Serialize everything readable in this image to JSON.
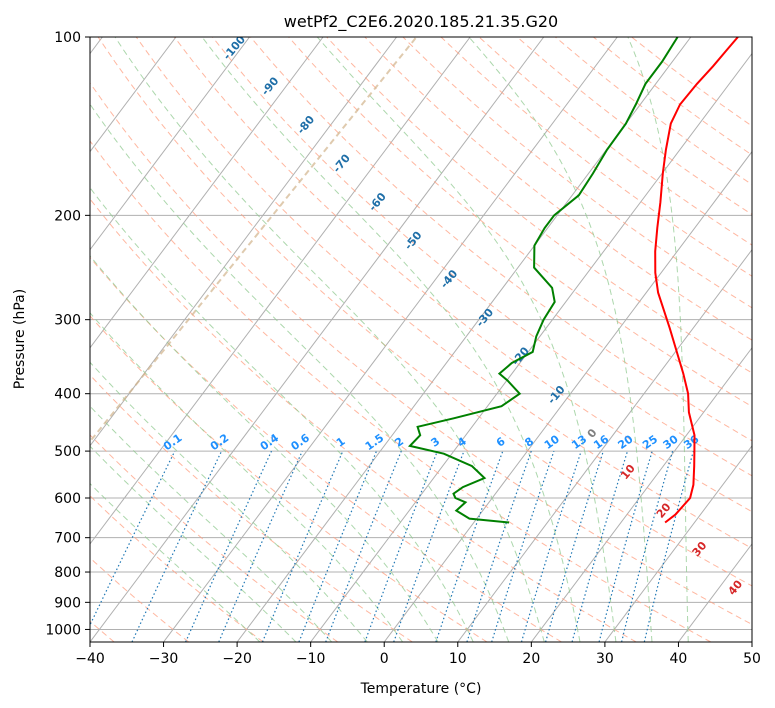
{
  "chart_data": {
    "type": "line",
    "title": "wetPf2_C2E6.2020.185.21.35.G20",
    "xlabel": "Temperature (°C)",
    "ylabel": "Pressure (hPa)",
    "xlim": [
      -40,
      50
    ],
    "ylim": [
      1050,
      100
    ],
    "y_scale": "log",
    "skew": "skew-T log-p",
    "x_ticks": [
      -40,
      -30,
      -20,
      -10,
      0,
      10,
      20,
      30,
      40,
      50
    ],
    "y_ticks": [
      100,
      200,
      300,
      400,
      500,
      600,
      700,
      800,
      900,
      1000
    ],
    "grid": true,
    "series": [
      {
        "role": "temperature",
        "color": "#ff0000",
        "points": [
          [
            660,
            26.0
          ],
          [
            640,
            26.6
          ],
          [
            600,
            26.9
          ],
          [
            570,
            26.0
          ],
          [
            530,
            24.2
          ],
          [
            500,
            22.7
          ],
          [
            470,
            21.1
          ],
          [
            430,
            18.0
          ],
          [
            400,
            16.0
          ],
          [
            370,
            13.3
          ],
          [
            340,
            10.2
          ],
          [
            310,
            6.8
          ],
          [
            290,
            4.3
          ],
          [
            270,
            1.6
          ],
          [
            250,
            -0.8
          ],
          [
            230,
            -3.0
          ],
          [
            210,
            -5.1
          ],
          [
            190,
            -7.3
          ],
          [
            170,
            -9.9
          ],
          [
            155,
            -11.9
          ],
          [
            140,
            -13.9
          ],
          [
            130,
            -14.6
          ],
          [
            120,
            -14.4
          ],
          [
            112,
            -14.0
          ],
          [
            105,
            -13.8
          ],
          [
            100,
            -13.6
          ]
        ]
      },
      {
        "role": "dewpoint",
        "color": "#008000",
        "points": [
          [
            660,
            4.8
          ],
          [
            650,
            -1.0
          ],
          [
            630,
            -3.6
          ],
          [
            610,
            -3.2
          ],
          [
            600,
            -5.0
          ],
          [
            590,
            -5.7
          ],
          [
            575,
            -5.1
          ],
          [
            555,
            -3.1
          ],
          [
            530,
            -6.0
          ],
          [
            505,
            -11.1
          ],
          [
            490,
            -16.5
          ],
          [
            470,
            -16.2
          ],
          [
            455,
            -17.4
          ],
          [
            440,
            -13.3
          ],
          [
            420,
            -8.1
          ],
          [
            400,
            -6.9
          ],
          [
            380,
            -9.9
          ],
          [
            370,
            -11.7
          ],
          [
            355,
            -11.1
          ],
          [
            340,
            -9.4
          ],
          [
            320,
            -10.5
          ],
          [
            300,
            -11.2
          ],
          [
            280,
            -11.5
          ],
          [
            265,
            -13.3
          ],
          [
            245,
            -17.8
          ],
          [
            225,
            -20.0
          ],
          [
            210,
            -20.4
          ],
          [
            200,
            -20.4
          ],
          [
            185,
            -19.1
          ],
          [
            170,
            -19.4
          ],
          [
            155,
            -19.9
          ],
          [
            140,
            -20.0
          ],
          [
            130,
            -20.6
          ],
          [
            120,
            -21.4
          ],
          [
            110,
            -21.4
          ],
          [
            100,
            -21.8
          ]
        ]
      }
    ],
    "dry_adiabat_labels": [
      "-100",
      "-90",
      "-80",
      "-70",
      "-60",
      "-50",
      "-40",
      "-30",
      "-20",
      "-10",
      "0",
      "10",
      "20",
      "30",
      "40"
    ],
    "mixing_ratio_labels": [
      "0.1",
      "0.2",
      "0.4",
      "0.6",
      "1",
      "1.5",
      "2",
      "3",
      "4",
      "6",
      "8",
      "10",
      "13",
      "16",
      "20",
      "25",
      "30",
      "36"
    ],
    "colors": {
      "temperature": "#ff0000",
      "dewpoint": "#008000",
      "isotherm_grid": "#b0b0b0",
      "dry_adiabat": "#ff9f80",
      "moist_adiabat": "#90c990",
      "mixing_ratio": "#1f77b4",
      "mixing_ratio_label": "#1e90ff",
      "dry_adiabat_label_cold": "#1f6fa8",
      "dry_adiabat_label_warm": "#d62728",
      "zero_label": "#808080",
      "tan_curve": "#d2b48c"
    }
  }
}
